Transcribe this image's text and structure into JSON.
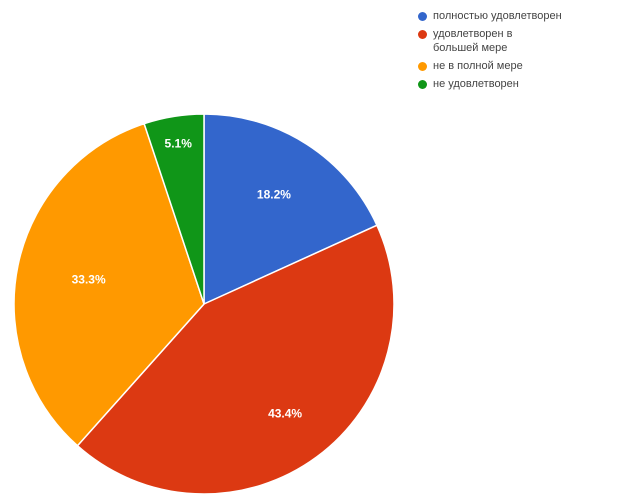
{
  "chart_data": {
    "type": "pie",
    "categories": [
      "полностью удовлетворен",
      "удовлетворен в большей мере",
      "не в полной мере",
      "не удовлетворен"
    ],
    "values": [
      18.2,
      43.4,
      33.3,
      5.1
    ],
    "value_labels": [
      "18.2%",
      "43.4%",
      "33.3%",
      "5.1%"
    ],
    "colors": [
      "#3366cc",
      "#dc3912",
      "#ff9900",
      "#109618"
    ],
    "start_angle": "12 o'clock",
    "direction": "clockwise",
    "legend_position": "top-right"
  }
}
